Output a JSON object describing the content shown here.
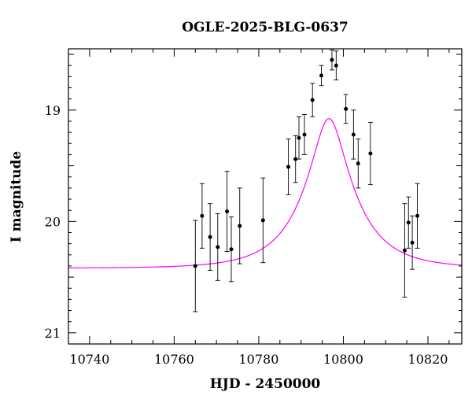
{
  "chart_data": {
    "type": "scatter",
    "title": "OGLE-2025-BLG-0637",
    "xlabel": "HJD - 2450000",
    "ylabel": "I magnitude",
    "xlim": [
      10735,
      10828
    ],
    "ylim": [
      21.1,
      18.45
    ],
    "y_inverted": true,
    "x_ticks": [
      10740,
      10760,
      10780,
      10800,
      10820
    ],
    "y_ticks": [
      19,
      20,
      21
    ],
    "grid": false,
    "legend": "none",
    "series": [
      {
        "kind": "data_points_with_errorbars",
        "color": "#000000",
        "points": [
          {
            "x": 10765.0,
            "y": 20.4,
            "err": 0.41
          },
          {
            "x": 10766.6,
            "y": 19.95,
            "err": 0.29
          },
          {
            "x": 10768.5,
            "y": 20.14,
            "err": 0.3
          },
          {
            "x": 10770.3,
            "y": 20.23,
            "err": 0.3
          },
          {
            "x": 10772.5,
            "y": 19.91,
            "err": 0.36
          },
          {
            "x": 10773.5,
            "y": 20.25,
            "err": 0.29
          },
          {
            "x": 10775.5,
            "y": 20.04,
            "err": 0.34
          },
          {
            "x": 10781.0,
            "y": 19.99,
            "err": 0.38
          },
          {
            "x": 10787.0,
            "y": 19.51,
            "err": 0.25
          },
          {
            "x": 10788.7,
            "y": 19.44,
            "err": 0.21
          },
          {
            "x": 10789.5,
            "y": 19.25,
            "err": 0.19
          },
          {
            "x": 10790.8,
            "y": 19.22,
            "err": 0.18
          },
          {
            "x": 10792.7,
            "y": 18.91,
            "err": 0.15
          },
          {
            "x": 10794.8,
            "y": 18.69,
            "err": 0.09
          },
          {
            "x": 10797.3,
            "y": 18.55,
            "err": 0.09
          },
          {
            "x": 10798.3,
            "y": 18.6,
            "err": 0.13
          },
          {
            "x": 10800.6,
            "y": 18.99,
            "err": 0.13
          },
          {
            "x": 10802.4,
            "y": 19.22,
            "err": 0.22
          },
          {
            "x": 10803.5,
            "y": 19.48,
            "err": 0.22
          },
          {
            "x": 10806.4,
            "y": 19.39,
            "err": 0.28
          },
          {
            "x": 10814.5,
            "y": 20.26,
            "err": 0.42
          },
          {
            "x": 10815.4,
            "y": 20.01,
            "err": 0.23
          },
          {
            "x": 10816.3,
            "y": 20.19,
            "err": 0.24
          },
          {
            "x": 10817.5,
            "y": 19.95,
            "err": 0.29
          }
        ]
      },
      {
        "kind": "model_curve",
        "color": "#ff00ff",
        "model": {
          "t0": 10796.6,
          "tE": 12.0,
          "u0": 0.3,
          "I_base": 20.42
        }
      }
    ]
  }
}
